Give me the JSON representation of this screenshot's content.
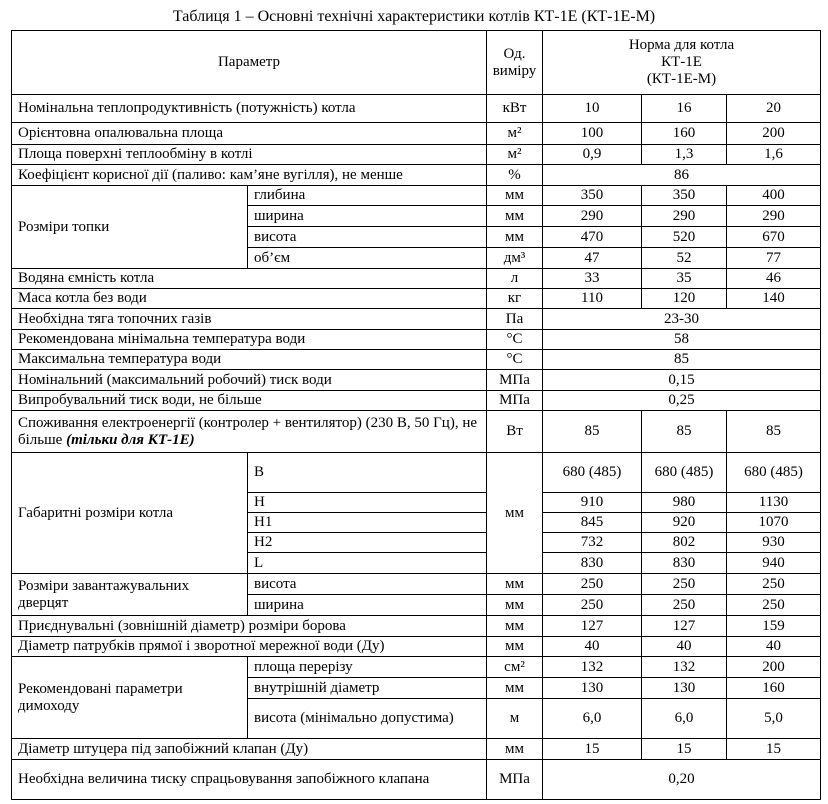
{
  "title": "Таблиця 1 – Основні технічні характеристики котлів КТ-1Е (КТ-1Е-М)",
  "header": {
    "param": "Параметр",
    "unit": "Од. виміру",
    "norm": [
      "Норма для котла",
      "КТ-1Е",
      "(КТ-1Е-М)"
    ]
  },
  "groups": [
    {
      "label": "Номінальна теплопродуктивність (потужність) котла",
      "rows": [
        {
          "unit": "кВт",
          "values": [
            "10",
            "16",
            "20"
          ]
        }
      ]
    },
    {
      "label": "Орієнтовна опалювальна площа",
      "rows": [
        {
          "unit": "м²",
          "values": [
            "100",
            "160",
            "200"
          ]
        }
      ]
    },
    {
      "label": "Площа поверхні теплообміну в котлі",
      "rows": [
        {
          "unit": "м²",
          "values": [
            "0,9",
            "1,3",
            "1,6"
          ]
        }
      ]
    },
    {
      "label": "Коефіцієнт корисної дії (паливо: кам’яне вугілля), не менше",
      "rows": [
        {
          "unit": "%",
          "value": "86"
        }
      ]
    },
    {
      "label": "Розміри топки",
      "rows": [
        {
          "sub": "глибина",
          "unit": "мм",
          "values": [
            "350",
            "350",
            "400"
          ]
        },
        {
          "sub": "ширина",
          "unit": "мм",
          "values": [
            "290",
            "290",
            "290"
          ]
        },
        {
          "sub": "висота",
          "unit": "мм",
          "values": [
            "470",
            "520",
            "670"
          ]
        },
        {
          "sub": "об’єм",
          "unit": "дм³",
          "values": [
            "47",
            "52",
            "77"
          ]
        }
      ]
    },
    {
      "label": "Водяна ємність котла",
      "rows": [
        {
          "unit": "л",
          "values": [
            "33",
            "35",
            "46"
          ]
        }
      ]
    },
    {
      "label": "Маса котла без води",
      "rows": [
        {
          "unit": "кг",
          "values": [
            "110",
            "120",
            "140"
          ]
        }
      ]
    },
    {
      "label": "Необхідна тяга топочних газів",
      "rows": [
        {
          "unit": "Па",
          "value": "23-30"
        }
      ]
    },
    {
      "label": "Рекомендована мінімальна температура води",
      "rows": [
        {
          "unit": "°C",
          "value": "58"
        }
      ]
    },
    {
      "label": "Максимальна температура води",
      "rows": [
        {
          "unit": "°C",
          "value": "85"
        }
      ]
    },
    {
      "label": "Номінальний (максимальний робочий) тиск води",
      "rows": [
        {
          "unit": "МПа",
          "value": "0,15"
        }
      ]
    },
    {
      "label": "Випробувальний тиск води, не більше",
      "rows": [
        {
          "unit": "МПа",
          "value": "0,25"
        }
      ]
    },
    {
      "label": "Споживання електроенергії (контролер + вентилятор) (230 В, 50 Гц), не більше",
      "label_emphasis": "(тільки для КТ-1Е)",
      "rows": [
        {
          "unit": "Вт",
          "values": [
            "85",
            "85",
            "85"
          ]
        }
      ]
    },
    {
      "label": "Габаритні розміри котла",
      "unit": "мм",
      "rows": [
        {
          "sub": "B",
          "values": [
            "680 (485)",
            "680 (485)",
            "680 (485)"
          ]
        },
        {
          "sub": "H",
          "values": [
            "910",
            "980",
            "1130"
          ]
        },
        {
          "sub": "H1",
          "values": [
            "845",
            "920",
            "1070"
          ]
        },
        {
          "sub": "H2",
          "values": [
            "732",
            "802",
            "930"
          ]
        },
        {
          "sub": "L",
          "values": [
            "830",
            "830",
            "940"
          ]
        }
      ]
    },
    {
      "label": "Розміри завантажувальних дверцят",
      "rows": [
        {
          "sub": "висота",
          "unit": "мм",
          "values": [
            "250",
            "250",
            "250"
          ]
        },
        {
          "sub": "ширина",
          "unit": "мм",
          "values": [
            "250",
            "250",
            "250"
          ]
        }
      ]
    },
    {
      "label": "Приєднувальні (зовнішній діаметр) розміри борова",
      "rows": [
        {
          "unit": "мм",
          "values": [
            "127",
            "127",
            "159"
          ]
        }
      ]
    },
    {
      "label": "Діаметр патрубків прямої і зворотної мережної води (Ду)",
      "rows": [
        {
          "unit": "мм",
          "values": [
            "40",
            "40",
            "40"
          ]
        }
      ]
    },
    {
      "label": "Рекомендовані параметри димоходу",
      "rows": [
        {
          "sub": "площа перерізу",
          "unit": "см²",
          "values": [
            "132",
            "132",
            "200"
          ]
        },
        {
          "sub": "внутрішній діаметр",
          "unit": "мм",
          "values": [
            "130",
            "130",
            "160"
          ]
        },
        {
          "sub": "висота (мінімально допустима)",
          "unit": "м",
          "values": [
            "6,0",
            "6,0",
            "5,0"
          ]
        }
      ]
    },
    {
      "label": "Діаметр штуцера під запобіжний клапан (Ду)",
      "rows": [
        {
          "unit": "мм",
          "values": [
            "15",
            "15",
            "15"
          ]
        }
      ]
    },
    {
      "label": "Необхідна величина тиску спрацьовування запобіжного клапана",
      "rows": [
        {
          "unit": "МПа",
          "value": "0,20"
        }
      ]
    }
  ]
}
